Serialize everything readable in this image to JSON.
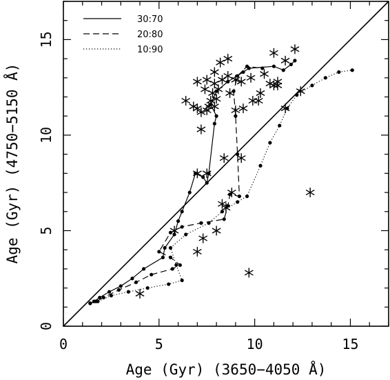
{
  "chart_data": {
    "type": "scatter",
    "xlabel": "Age (Gyr) (3650−4050 Å)",
    "ylabel": "Age (Gyr) (4750−5150 Å)",
    "xlim": [
      0,
      17
    ],
    "ylim": [
      0,
      17
    ],
    "xticks": [
      0,
      5,
      10,
      15
    ],
    "yticks": [
      0,
      5,
      10,
      15
    ],
    "grid": false,
    "legend_position": "top-left",
    "identity_line": true,
    "series": [
      {
        "name": "30:70",
        "style": "solid",
        "points": [
          [
            1.4,
            1.2
          ],
          [
            1.6,
            1.3
          ],
          [
            1.9,
            1.5
          ],
          [
            2.4,
            1.8
          ],
          [
            3.0,
            2.1
          ],
          [
            3.6,
            2.5
          ],
          [
            4.2,
            3.0
          ],
          [
            5.2,
            3.6
          ],
          [
            5.3,
            4.1
          ],
          [
            5.8,
            4.8
          ],
          [
            6.0,
            5.5
          ],
          [
            6.2,
            6.0
          ],
          [
            6.6,
            7.0
          ],
          [
            6.9,
            8.0
          ],
          [
            7.3,
            7.8
          ],
          [
            7.5,
            7.5
          ],
          [
            7.6,
            8.0
          ],
          [
            7.9,
            10.6
          ],
          [
            8.0,
            11.0
          ],
          [
            7.7,
            11.6
          ],
          [
            8.0,
            12.3
          ],
          [
            8.6,
            12.8
          ],
          [
            9.4,
            13.3
          ],
          [
            9.7,
            13.5
          ],
          [
            11.0,
            13.6
          ],
          [
            11.5,
            13.4
          ],
          [
            11.9,
            13.7
          ],
          [
            12.1,
            13.9
          ]
        ]
      },
      {
        "name": "20:80",
        "style": "dashed",
        "points": [
          [
            1.4,
            1.2
          ],
          [
            1.7,
            1.3
          ],
          [
            2.1,
            1.5
          ],
          [
            2.9,
            1.9
          ],
          [
            3.8,
            2.3
          ],
          [
            4.6,
            2.7
          ],
          [
            5.7,
            3.0
          ],
          [
            6.1,
            3.2
          ],
          [
            5.6,
            3.6
          ],
          [
            5.0,
            3.9
          ],
          [
            5.6,
            4.9
          ],
          [
            6.2,
            5.2
          ],
          [
            7.2,
            5.4
          ],
          [
            8.4,
            5.6
          ],
          [
            8.6,
            6.3
          ],
          [
            8.7,
            6.9
          ],
          [
            9.2,
            6.8
          ],
          [
            9.1,
            9.0
          ],
          [
            9.0,
            11.0
          ],
          [
            8.9,
            12.3
          ],
          [
            9.1,
            13.1
          ],
          [
            9.6,
            13.6
          ],
          [
            10.4,
            13.5
          ]
        ]
      },
      {
        "name": "10:90",
        "style": "dotted",
        "points": [
          [
            1.4,
            1.2
          ],
          [
            1.8,
            1.3
          ],
          [
            2.5,
            1.6
          ],
          [
            3.4,
            1.8
          ],
          [
            4.4,
            2.0
          ],
          [
            5.5,
            2.2
          ],
          [
            6.2,
            2.4
          ],
          [
            5.9,
            3.2
          ],
          [
            5.6,
            4.1
          ],
          [
            6.4,
            4.8
          ],
          [
            7.6,
            5.4
          ],
          [
            8.3,
            6.0
          ],
          [
            9.1,
            6.5
          ],
          [
            9.6,
            6.8
          ],
          [
            10.3,
            8.4
          ],
          [
            10.8,
            9.6
          ],
          [
            11.3,
            10.5
          ],
          [
            11.7,
            11.4
          ],
          [
            12.2,
            12.1
          ],
          [
            13.0,
            12.6
          ],
          [
            13.7,
            13.0
          ],
          [
            14.4,
            13.3
          ],
          [
            15.1,
            13.4
          ]
        ]
      }
    ],
    "markers": {
      "name": "",
      "symbol": "asterisk",
      "points": [
        [
          4.0,
          1.7
        ],
        [
          5.8,
          5.0
        ],
        [
          7.0,
          3.9
        ],
        [
          7.3,
          4.6
        ],
        [
          8.0,
          5.0
        ],
        [
          8.3,
          6.4
        ],
        [
          8.5,
          6.2
        ],
        [
          8.8,
          7.0
        ],
        [
          9.7,
          2.8
        ],
        [
          12.9,
          7.0
        ],
        [
          7.0,
          8.0
        ],
        [
          7.5,
          8.0
        ],
        [
          9.3,
          8.8
        ],
        [
          8.4,
          8.8
        ],
        [
          7.2,
          10.3
        ],
        [
          6.4,
          11.8
        ],
        [
          6.8,
          11.5
        ],
        [
          7.0,
          11.4
        ],
        [
          7.2,
          11.2
        ],
        [
          7.5,
          11.3
        ],
        [
          7.6,
          11.5
        ],
        [
          7.7,
          11.8
        ],
        [
          7.9,
          11.5
        ],
        [
          8.0,
          11.9
        ],
        [
          7.8,
          12.2
        ],
        [
          7.4,
          12.4
        ],
        [
          7.0,
          12.8
        ],
        [
          7.5,
          12.9
        ],
        [
          7.9,
          12.7
        ],
        [
          8.1,
          12.4
        ],
        [
          7.9,
          13.3
        ],
        [
          8.3,
          12.9
        ],
        [
          8.6,
          13.1
        ],
        [
          8.2,
          13.8
        ],
        [
          8.6,
          14.0
        ],
        [
          8.7,
          12.2
        ],
        [
          9.0,
          12.9
        ],
        [
          9.3,
          12.8
        ],
        [
          9.0,
          11.3
        ],
        [
          9.4,
          11.4
        ],
        [
          9.9,
          11.8
        ],
        [
          10.2,
          11.8
        ],
        [
          10.3,
          12.2
        ],
        [
          10.8,
          12.7
        ],
        [
          11.0,
          12.6
        ],
        [
          11.2,
          12.8
        ],
        [
          11.2,
          12.6
        ],
        [
          11.0,
          14.3
        ],
        [
          11.6,
          13.9
        ],
        [
          12.1,
          14.5
        ],
        [
          11.6,
          11.4
        ],
        [
          12.4,
          12.3
        ],
        [
          9.8,
          13.0
        ],
        [
          10.5,
          13.2
        ]
      ]
    }
  }
}
